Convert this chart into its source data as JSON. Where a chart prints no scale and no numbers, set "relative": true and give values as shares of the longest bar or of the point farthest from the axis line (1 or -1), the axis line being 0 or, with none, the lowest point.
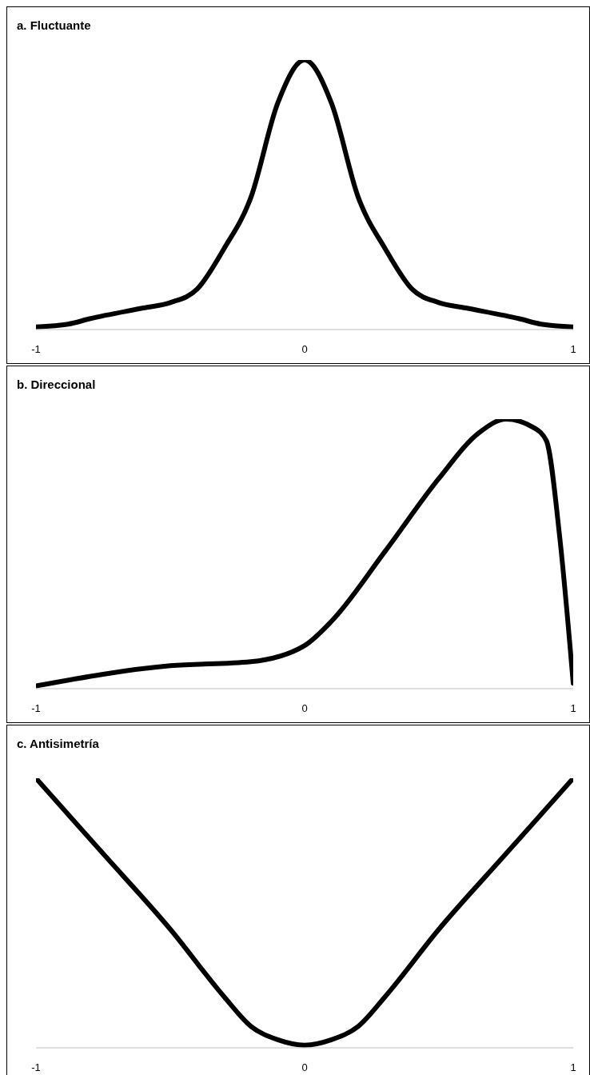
{
  "chart_data": [
    {
      "type": "line",
      "title": "a. Fluctuante",
      "relative": true,
      "x": [
        -1,
        -0.88,
        -0.8,
        -0.6,
        -0.5,
        -0.4,
        -0.3,
        -0.2,
        -0.1,
        0,
        0.1,
        0.2,
        0.3,
        0.4,
        0.5,
        0.6,
        0.8,
        0.88,
        1
      ],
      "xlim": [
        -1,
        1
      ],
      "xticks": [
        -1,
        0,
        1
      ],
      "series": [
        {
          "color": "#000000",
          "values": [
            0.01,
            0.02,
            0.04,
            0.08,
            0.1,
            0.15,
            0.3,
            0.49,
            0.84,
            1,
            0.84,
            0.49,
            0.3,
            0.15,
            0.1,
            0.08,
            0.04,
            0.02,
            0.01
          ]
        }
      ]
    },
    {
      "type": "line",
      "title": "b. Direccional",
      "relative": true,
      "x": [
        -1,
        -0.5,
        -0.2,
        0,
        0.1,
        0.3,
        0.5,
        0.65,
        0.75,
        0.85,
        0.9,
        0.95,
        1
      ],
      "xlim": [
        -1,
        1
      ],
      "xticks": [
        -1,
        0,
        1
      ],
      "series": [
        {
          "color": "#000000",
          "values": [
            0.01,
            0.085,
            0.1,
            0.16,
            0.25,
            0.51,
            0.78,
            0.95,
            1,
            0.97,
            0.92,
            0.56,
            0.02
          ]
        }
      ]
    },
    {
      "type": "line",
      "title": "c. Antisimetría",
      "relative": true,
      "x": [
        -1,
        -0.75,
        -0.5,
        -0.3,
        -0.2,
        -0.1,
        0,
        0.1,
        0.2,
        0.3,
        0.5,
        0.75,
        1
      ],
      "xlim": [
        -1,
        1
      ],
      "xticks": [
        -1,
        0,
        1
      ],
      "series": [
        {
          "color": "#000000",
          "values": [
            1,
            0.72,
            0.44,
            0.19,
            0.08,
            0.03,
            0.01,
            0.03,
            0.08,
            0.19,
            0.44,
            0.72,
            1
          ]
        }
      ]
    }
  ]
}
